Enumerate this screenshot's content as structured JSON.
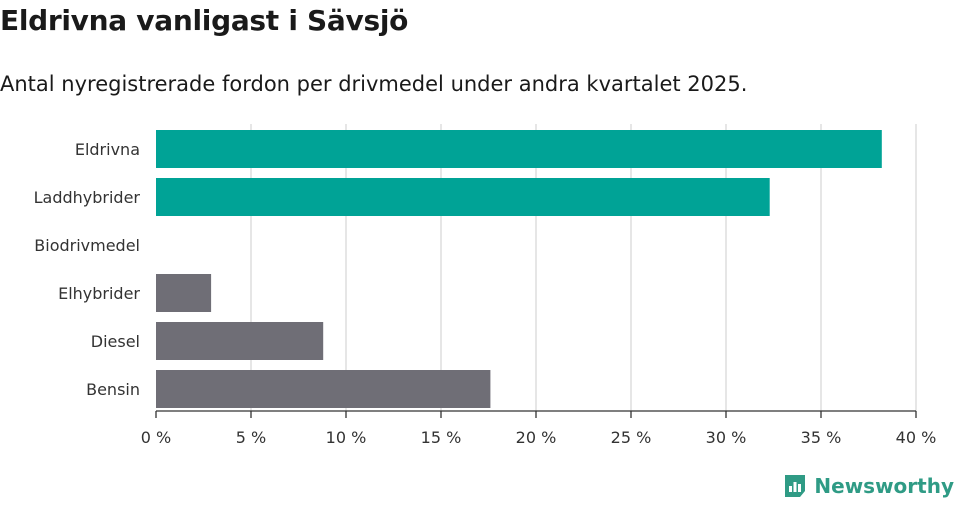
{
  "title": "Eldrivna vanligast i Sävsjö",
  "subtitle": "Antal nyregistrerade fordon per drivmedel under andra kvartalet 2025.",
  "brand": "Newsworthy",
  "colors": {
    "highlight": "#00a396",
    "other": "#6f6e76",
    "grid": "#dddddd",
    "axis": "#333333",
    "brand": "#2f9b85"
  },
  "chart_data": {
    "type": "bar",
    "orientation": "horizontal",
    "categories": [
      "Eldrivna",
      "Laddhybrider",
      "Biodrivmedel",
      "Elhybrider",
      "Diesel",
      "Bensin"
    ],
    "values": [
      38.2,
      32.3,
      0,
      2.9,
      8.8,
      17.6
    ],
    "highlighted": [
      true,
      true,
      false,
      false,
      false,
      false
    ],
    "xlim": [
      0,
      40
    ],
    "x_ticks": [
      0,
      5,
      10,
      15,
      20,
      25,
      30,
      35,
      40
    ],
    "tick_labels": [
      "0 %",
      "5 %",
      "10 %",
      "15 %",
      "20 %",
      "25 %",
      "30 %",
      "35 %",
      "40 %"
    ],
    "grid": true,
    "legend": "none"
  }
}
